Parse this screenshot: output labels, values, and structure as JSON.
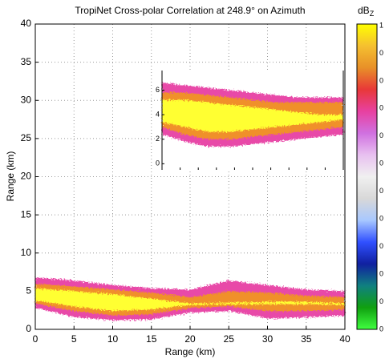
{
  "chart_data": {
    "type": "heatmap",
    "title": "TropiNet Cross-polar Correlation at 248.9° on Azimuth",
    "x_label": "Range (km)",
    "y_label": "Range (km)",
    "xlim": [
      0,
      40
    ],
    "ylim": [
      0,
      40
    ],
    "xticks": [
      0,
      5,
      10,
      15,
      20,
      25,
      30,
      35,
      40
    ],
    "yticks": [
      0,
      5,
      10,
      15,
      20,
      25,
      30,
      35,
      40
    ],
    "grid": true,
    "x": [
      0,
      5,
      10,
      15,
      20,
      25,
      30,
      35,
      40
    ],
    "layers": [
      {
        "color": "#e84aa8",
        "top": [
          6.8,
          6.4,
          5.8,
          5.4,
          5.2,
          6.4,
          5.8,
          5.2,
          5.0
        ],
        "bottom": [
          2.8,
          1.6,
          1.2,
          1.3,
          2.2,
          2.4,
          1.4,
          1.6,
          1.8
        ]
      },
      {
        "color": "#f0902a",
        "top": [
          6.0,
          5.6,
          5.2,
          4.8,
          4.2,
          5.0,
          4.8,
          4.4,
          4.2
        ],
        "bottom": [
          3.4,
          2.4,
          1.8,
          2.0,
          2.8,
          3.0,
          2.4,
          2.4,
          2.6
        ]
      },
      {
        "color": "#ffff30",
        "top": [
          5.4,
          5.0,
          4.6,
          4.0,
          3.4,
          3.5,
          3.6,
          3.6,
          3.4
        ],
        "bottom": [
          3.8,
          3.0,
          2.4,
          2.6,
          3.2,
          3.3,
          3.3,
          3.3,
          3.2
        ]
      }
    ],
    "colorbar": {
      "label": "dB",
      "label_sub": "Z",
      "colors": [
        "#ffff00",
        "#f5c030",
        "#e89028",
        "#e83838",
        "#e840a0",
        "#d070e0",
        "#e8c0f0",
        "#f0f0f0",
        "#d8d8d8",
        "#a8c8ff",
        "#3050ff",
        "#1020a0",
        "#108080",
        "#10a010",
        "#40ff40"
      ],
      "tick_labels": [
        "1",
        "0",
        "0",
        "0",
        "0",
        "0",
        "0",
        "0",
        "0",
        "0",
        "0",
        "0"
      ]
    },
    "inset": {
      "xlim": [
        0,
        40
      ],
      "ylim": [
        -0.5,
        7.6
      ],
      "xticks": [
        0,
        4,
        8,
        12,
        16,
        20,
        24,
        28,
        32,
        36,
        40
      ],
      "yticks": [
        0,
        2,
        4,
        6
      ],
      "x": [
        0,
        5,
        10,
        15,
        20,
        25,
        30,
        35,
        40
      ],
      "layers": [
        {
          "color": "#e84aa8",
          "top": [
            6.6,
            6.4,
            6.2,
            6.0,
            5.8,
            5.6,
            5.4,
            5.4,
            5.4
          ],
          "bottom": [
            2.4,
            1.8,
            1.4,
            1.4,
            1.6,
            1.8,
            2.0,
            2.2,
            2.4
          ]
        },
        {
          "color": "#f0902a",
          "top": [
            5.8,
            5.8,
            5.6,
            5.4,
            5.2,
            5.0,
            5.0,
            5.0,
            5.0
          ],
          "bottom": [
            3.0,
            2.4,
            2.0,
            2.0,
            2.2,
            2.4,
            2.6,
            2.8,
            3.0
          ]
        },
        {
          "color": "#ffff30",
          "top": [
            5.2,
            5.2,
            5.0,
            4.8,
            4.6,
            4.4,
            4.2,
            4.0,
            4.0
          ],
          "bottom": [
            3.4,
            3.0,
            2.6,
            2.6,
            2.8,
            3.0,
            3.2,
            3.4,
            3.6
          ]
        }
      ]
    }
  }
}
